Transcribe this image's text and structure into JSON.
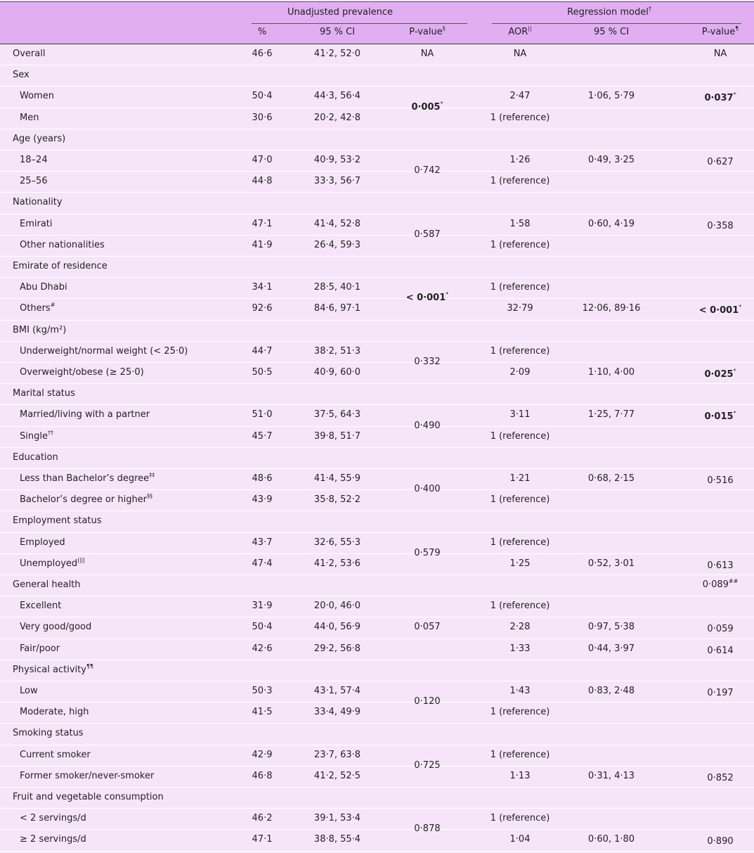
{
  "header": {
    "groups": [
      {
        "label": "Unadjusted prevalence"
      },
      {
        "label": "Regression model",
        "sup": "†"
      }
    ],
    "columns": [
      {
        "label": "%"
      },
      {
        "label": "95 % CI"
      },
      {
        "label": "P-value",
        "sup": "§"
      },
      {
        "label": "AOR",
        "sup": "||"
      },
      {
        "label": "95 % CI"
      },
      {
        "label": "P-value",
        "sup": "¶"
      }
    ]
  },
  "table": {
    "overall": {
      "label": "Overall",
      "pct": "46·6",
      "ci": "41·2, 52·0",
      "p": "NA",
      "aor": "NA",
      "aor_p": "NA"
    },
    "groups": [
      {
        "label": "Sex",
        "p": "0·005",
        "p_sup": "*",
        "rows": [
          {
            "label": "Women",
            "pct": "50·4",
            "ci": "44·3, 56·4",
            "aor": "2·47",
            "aor_ci": "1·06, 5·79",
            "aor_p": "0·037",
            "aor_p_sup": "*"
          },
          {
            "label": "Men",
            "pct": "30·6",
            "ci": "20·2, 42·8",
            "aor": "1 (reference)"
          }
        ]
      },
      {
        "label": "Age (years)",
        "p": "0·742",
        "rows": [
          {
            "label": "18–24",
            "pct": "47·0",
            "ci": "40·9, 53·2",
            "aor": "1·26",
            "aor_ci": "0·49, 3·25",
            "aor_p": "0·627"
          },
          {
            "label": "25–56",
            "pct": "44·8",
            "ci": "33·3, 56·7",
            "aor": "1 (reference)"
          }
        ]
      },
      {
        "label": "Nationality",
        "p": "0·587",
        "rows": [
          {
            "label": "Emirati",
            "pct": "47·1",
            "ci": "41·4, 52·8",
            "aor": "1·58",
            "aor_ci": "0·60, 4·19",
            "aor_p": "0·358"
          },
          {
            "label": "Other nationalities",
            "pct": "41·9",
            "ci": "26·4, 59·3",
            "aor": "1 (reference)"
          }
        ]
      },
      {
        "label": "Emirate of residence",
        "p": "< 0·001",
        "p_sup": "*",
        "rows": [
          {
            "label": "Abu Dhabi",
            "pct": "34·1",
            "ci": "28·5, 40·1",
            "aor": "1 (reference)"
          },
          {
            "label": "Others",
            "sup": "#",
            "pct": "92·6",
            "ci": "84·6, 97·1",
            "aor": "32·79",
            "aor_ci": "12·06, 89·16",
            "aor_p": "< 0·001",
            "aor_p_sup": "*"
          }
        ]
      },
      {
        "label": "BMI (kg/m²)",
        "p": "0·332",
        "rows": [
          {
            "label": "Underweight/normal weight (< 25·0)",
            "pct": "44·7",
            "ci": "38·2, 51·3",
            "aor": "1 (reference)"
          },
          {
            "label": "Overweight/obese (≥ 25·0)",
            "pct": "50·5",
            "ci": "40·9, 60·0",
            "aor": "2·09",
            "aor_ci": "1·10, 4·00",
            "aor_p": "0·025",
            "aor_p_sup": "*"
          }
        ]
      },
      {
        "label": "Marital status",
        "p": "0·490",
        "rows": [
          {
            "label": "Married/living with a partner",
            "pct": "51·0",
            "ci": "37·5, 64·3",
            "aor": "3·11",
            "aor_ci": "1·25, 7·77",
            "aor_p": "0·015",
            "aor_p_sup": "*"
          },
          {
            "label": "Single",
            "sup": "††",
            "pct": "45·7",
            "ci": "39·8, 51·7",
            "aor": "1 (reference)"
          }
        ]
      },
      {
        "label": "Education",
        "p": "0·400",
        "rows": [
          {
            "label": "Less than Bachelor’s degree",
            "sup": "‡‡",
            "pct": "48·6",
            "ci": "41·4, 55·9",
            "aor": "1·21",
            "aor_ci": "0·68, 2·15",
            "aor_p": "0·516"
          },
          {
            "label": "Bachelor’s degree or higher",
            "sup": "§§",
            "pct": "43·9",
            "ci": "35·8, 52·2",
            "aor": "1 (reference)"
          }
        ]
      },
      {
        "label": "Employment status",
        "p": "0·579",
        "rows": [
          {
            "label": "Employed",
            "pct": "43·7",
            "ci": "32·6, 55·3",
            "aor": "1 (reference)"
          },
          {
            "label": "Unemployed",
            "sup": "||||",
            "pct": "47·4",
            "ci": "41·2, 53·6",
            "aor": "1·25",
            "aor_ci": "0·52, 3·01",
            "aor_p": "0·613"
          }
        ]
      },
      {
        "label": "General health",
        "aor_p": "0·089",
        "aor_p_sup": "##",
        "p": "0·057",
        "rows": [
          {
            "label": "Excellent",
            "pct": "31·9",
            "ci": "20·0, 46·0",
            "aor": "1 (reference)"
          },
          {
            "label": "Very good/good",
            "pct": "50·4",
            "ci": "44·0, 56·9",
            "aor": "2·28",
            "aor_ci": "0·97, 5·38",
            "aor_p": "0·059"
          },
          {
            "label": "Fair/poor",
            "pct": "42·6",
            "ci": "29·2, 56·8",
            "aor": "1·33",
            "aor_ci": "0·44, 3·97",
            "aor_p": "0·614"
          }
        ]
      },
      {
        "label": "Physical activity",
        "sup": "¶¶",
        "p": "0·120",
        "rows": [
          {
            "label": "Low",
            "pct": "50·3",
            "ci": "43·1, 57·4",
            "aor": "1·43",
            "aor_ci": "0·83, 2·48",
            "aor_p": "0·197"
          },
          {
            "label": "Moderate, high",
            "pct": "41·5",
            "ci": "33·4, 49·9",
            "aor": "1 (reference)"
          }
        ]
      },
      {
        "label": "Smoking status",
        "p": "0·725",
        "rows": [
          {
            "label": "Current smoker",
            "pct": "42·9",
            "ci": "23·7, 63·8",
            "aor": "1 (reference)"
          },
          {
            "label": "Former smoker/never-smoker",
            "pct": "46·8",
            "ci": "41·2, 52·5",
            "aor": "1·13",
            "aor_ci": "0·31, 4·13",
            "aor_p": "0·852"
          }
        ]
      },
      {
        "label": "Fruit and vegetable consumption",
        "p": "0·878",
        "rows": [
          {
            "label": "< 2 servings/d",
            "pct": "46·2",
            "ci": "39·1, 53·4",
            "aor": "1 (reference)"
          },
          {
            "label": "≥ 2 servings/d",
            "pct": "47·1",
            "ci": "38·8, 55·4",
            "aor": "1·04",
            "aor_ci": "0·60, 1·80",
            "aor_p": "0·890"
          }
        ]
      }
    ]
  }
}
